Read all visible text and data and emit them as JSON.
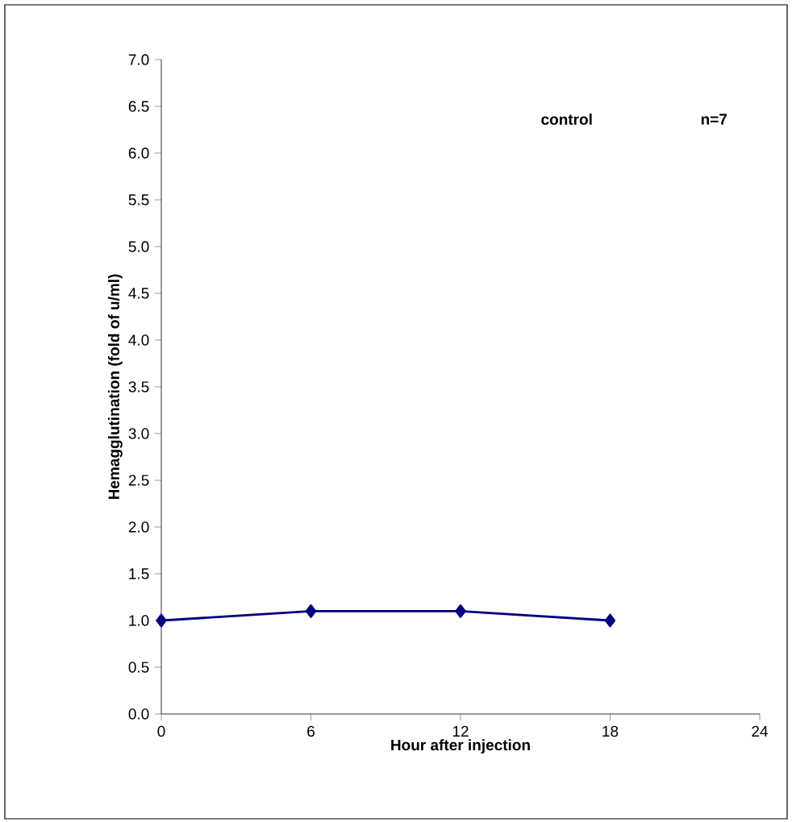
{
  "chart_data": {
    "type": "line",
    "xlabel": "Hour after injection",
    "ylabel": "Hemagglutination (fold of u/ml)",
    "annotations": [
      "control",
      "n=7"
    ],
    "x": [
      0,
      6,
      12,
      18
    ],
    "series": [
      {
        "color": "#000080",
        "values": [
          1.0,
          1.1,
          1.1,
          1.0
        ]
      }
    ],
    "marker": "diamond",
    "line_style": "solid",
    "xlim": [
      0,
      24
    ],
    "xticks": [
      0,
      6,
      12,
      18,
      24
    ],
    "ylim": [
      0,
      7
    ],
    "yticks": [
      {
        "value": 0,
        "label": "0.0"
      },
      {
        "value": 0.5,
        "label": "0.5"
      },
      {
        "value": 1,
        "label": "1.0"
      },
      {
        "value": 1.5,
        "label": "1.5"
      },
      {
        "value": 2,
        "label": "2.0"
      },
      {
        "value": 2.5,
        "label": "2.5"
      },
      {
        "value": 3,
        "label": "3.0"
      },
      {
        "value": 3.5,
        "label": "3.5"
      },
      {
        "value": 4,
        "label": "4.0"
      },
      {
        "value": 4.5,
        "label": "4.5"
      },
      {
        "value": 5,
        "label": "5.0"
      },
      {
        "value": 5.5,
        "label": "5.5"
      },
      {
        "value": 6,
        "label": "6.0"
      },
      {
        "value": 6.5,
        "label": "6.5"
      },
      {
        "value": 7,
        "label": "7.0"
      }
    ]
  }
}
